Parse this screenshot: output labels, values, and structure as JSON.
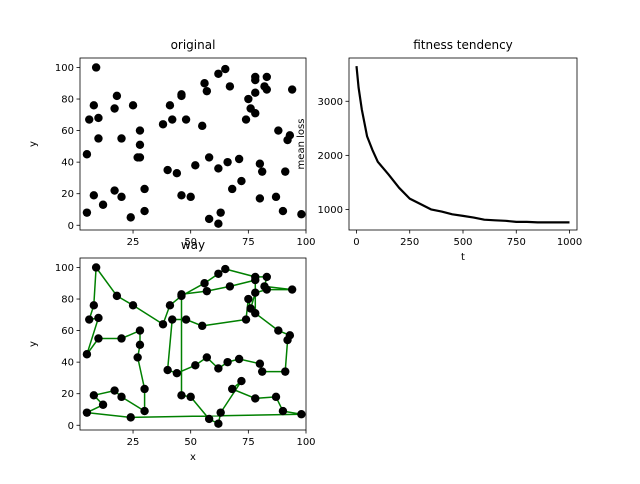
{
  "chart_data": [
    {
      "type": "scatter",
      "title": "original",
      "xlabel": "",
      "ylabel": "y",
      "xlim": [
        2,
        100
      ],
      "ylim": [
        -3,
        106
      ],
      "xticks": [
        "25",
        "50",
        "75",
        "100"
      ],
      "yticks": [
        "0",
        "20",
        "40",
        "60",
        "80",
        "100"
      ],
      "marker_color": "#000000",
      "points": [
        [
          9,
          100
        ],
        [
          6,
          67
        ],
        [
          8,
          76
        ],
        [
          10,
          68
        ],
        [
          10,
          55
        ],
        [
          5,
          45
        ],
        [
          5,
          8
        ],
        [
          8,
          19
        ],
        [
          12,
          13
        ],
        [
          18,
          82
        ],
        [
          17,
          74
        ],
        [
          25,
          76
        ],
        [
          20,
          55
        ],
        [
          17,
          22
        ],
        [
          20,
          18
        ],
        [
          24,
          5
        ],
        [
          28,
          60
        ],
        [
          28,
          51
        ],
        [
          27,
          43
        ],
        [
          28,
          43
        ],
        [
          30,
          23
        ],
        [
          30,
          9
        ],
        [
          38,
          64
        ],
        [
          41,
          76
        ],
        [
          40,
          35
        ],
        [
          42,
          67
        ],
        [
          46,
          82
        ],
        [
          46,
          83
        ],
        [
          48,
          67
        ],
        [
          44,
          33
        ],
        [
          46,
          19
        ],
        [
          50,
          18
        ],
        [
          52,
          38
        ],
        [
          55,
          63
        ],
        [
          56,
          90
        ],
        [
          57,
          85
        ],
        [
          58,
          4
        ],
        [
          58,
          43
        ],
        [
          62,
          36
        ],
        [
          63,
          8
        ],
        [
          62,
          1
        ],
        [
          62,
          96
        ],
        [
          65,
          99
        ],
        [
          67,
          88
        ],
        [
          66,
          40
        ],
        [
          68,
          23
        ],
        [
          71,
          42
        ],
        [
          72,
          28
        ],
        [
          74,
          67
        ],
        [
          75,
          80
        ],
        [
          76,
          74
        ],
        [
          78,
          94
        ],
        [
          78,
          92
        ],
        [
          78,
          84
        ],
        [
          78,
          71
        ],
        [
          80,
          39
        ],
        [
          80,
          17
        ],
        [
          82,
          88
        ],
        [
          83,
          86
        ],
        [
          83,
          94
        ],
        [
          81,
          34
        ],
        [
          88,
          60
        ],
        [
          87,
          18
        ],
        [
          90,
          9
        ],
        [
          91,
          34
        ],
        [
          92,
          54
        ],
        [
          93,
          57
        ],
        [
          94,
          86
        ],
        [
          98,
          7
        ]
      ]
    },
    {
      "type": "line",
      "title": "fitness tendency",
      "xlabel": "t",
      "ylabel": "mean loss",
      "xlim": [
        -35,
        1035
      ],
      "ylim": [
        620,
        3800
      ],
      "xticks": [
        "0",
        "250",
        "500",
        "750",
        "1000"
      ],
      "yticks": [
        "1000",
        "2000",
        "3000"
      ],
      "line_color": "#000000",
      "series": [
        {
          "x": [
            0,
            10,
            25,
            50,
            75,
            100,
            150,
            200,
            250,
            300,
            350,
            400,
            450,
            500,
            550,
            600,
            650,
            700,
            750,
            800,
            850,
            900,
            950,
            1000
          ],
          "values": [
            3650,
            3250,
            2850,
            2350,
            2100,
            1880,
            1650,
            1400,
            1200,
            1100,
            1000,
            960,
            910,
            880,
            850,
            810,
            800,
            790,
            770,
            770,
            760,
            760,
            760,
            760
          ]
        }
      ]
    },
    {
      "type": "line",
      "title": "way",
      "xlabel": "x",
      "ylabel": "y",
      "xlim": [
        2,
        100
      ],
      "ylim": [
        -3,
        106
      ],
      "xticks": [
        "25",
        "50",
        "75",
        "100"
      ],
      "yticks": [
        "0",
        "20",
        "40",
        "60",
        "80",
        "100"
      ],
      "line_color": "#008000",
      "marker_color": "#000000",
      "path": [
        [
          9,
          100
        ],
        [
          18,
          82
        ],
        [
          25,
          76
        ],
        [
          38,
          64
        ],
        [
          41,
          76
        ],
        [
          46,
          82
        ],
        [
          56,
          90
        ],
        [
          62,
          96
        ],
        [
          65,
          99
        ],
        [
          78,
          94
        ],
        [
          83,
          94
        ],
        [
          82,
          88
        ],
        [
          94,
          86
        ],
        [
          83,
          86
        ],
        [
          78,
          84
        ],
        [
          76,
          74
        ],
        [
          75,
          80
        ],
        [
          74,
          67
        ],
        [
          55,
          63
        ],
        [
          48,
          67
        ],
        [
          42,
          67
        ],
        [
          40,
          35
        ],
        [
          44,
          33
        ],
        [
          52,
          38
        ],
        [
          57,
          43
        ],
        [
          62,
          36
        ],
        [
          66,
          40
        ],
        [
          71,
          42
        ],
        [
          80,
          39
        ],
        [
          81,
          34
        ],
        [
          91,
          34
        ],
        [
          92,
          54
        ],
        [
          93,
          57
        ],
        [
          88,
          60
        ],
        [
          78,
          71
        ],
        [
          78,
          92
        ],
        [
          67,
          88
        ],
        [
          57,
          85
        ],
        [
          46,
          83
        ],
        [
          46,
          19
        ],
        [
          50,
          18
        ],
        [
          58,
          4
        ],
        [
          62,
          1
        ],
        [
          63,
          8
        ],
        [
          72,
          28
        ],
        [
          68,
          23
        ],
        [
          78,
          17
        ],
        [
          87,
          18
        ],
        [
          90,
          9
        ],
        [
          98,
          7
        ],
        [
          24,
          5
        ],
        [
          5,
          8
        ],
        [
          12,
          13
        ],
        [
          8,
          19
        ],
        [
          17,
          22
        ],
        [
          20,
          18
        ],
        [
          30,
          9
        ],
        [
          30,
          23
        ],
        [
          27,
          43
        ],
        [
          28,
          51
        ],
        [
          28,
          60
        ],
        [
          20,
          55
        ],
        [
          10,
          55
        ],
        [
          5,
          45
        ],
        [
          10,
          68
        ],
        [
          6,
          67
        ],
        [
          8,
          76
        ],
        [
          9,
          100
        ]
      ]
    }
  ]
}
